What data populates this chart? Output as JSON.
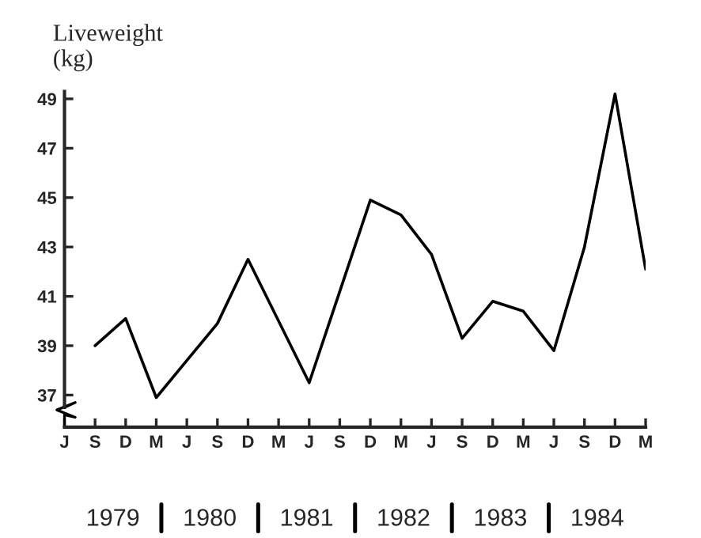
{
  "chart_data": {
    "type": "line",
    "ylabel": "Liveweight\n(kg)",
    "categories": [
      "J",
      "S",
      "D",
      "M",
      "J",
      "S",
      "D",
      "M",
      "J",
      "S",
      "D",
      "M",
      "J",
      "S",
      "D",
      "M",
      "J",
      "S",
      "D",
      "M"
    ],
    "series": [
      {
        "color": "#000000",
        "values": [
          null,
          39.0,
          40.1,
          36.9,
          38.4,
          39.9,
          42.5,
          40.0,
          37.5,
          41.2,
          44.9,
          44.3,
          42.7,
          39.3,
          40.8,
          40.4,
          38.8,
          43.0,
          49.2,
          42.1
        ]
      }
    ],
    "ylim": [
      35.7,
      49.3
    ],
    "yticks": [
      37,
      39,
      41,
      43,
      45,
      47,
      49
    ],
    "grid": false,
    "legend": false,
    "marker": "none",
    "line_style": "solid",
    "annotations": [
      "1979",
      "1980",
      "1981",
      "1982",
      "1983",
      "1984"
    ]
  }
}
